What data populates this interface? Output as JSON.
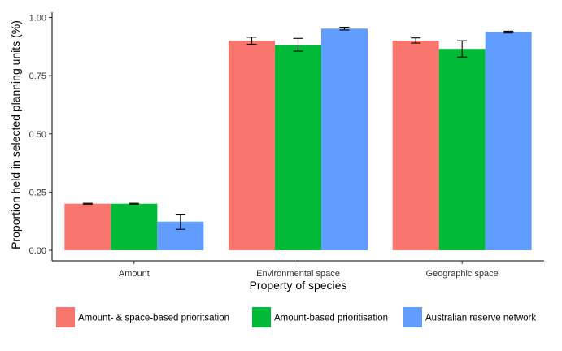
{
  "chart_data": {
    "type": "bar",
    "title": "",
    "xlabel": "Property of species",
    "ylabel": "Proportion held in selected planning units (%)",
    "ylim": [
      0,
      1
    ],
    "yticks": [
      "0.00",
      "0.25",
      "0.50",
      "0.75",
      "1.00"
    ],
    "grid": false,
    "legend_position": "bottom",
    "categories": [
      "Amount",
      "Environmental space",
      "Geographic space"
    ],
    "series": [
      {
        "name": "Amount- & space-based prioritsation",
        "color": "#F8766D",
        "values": [
          0.2,
          0.9,
          0.9
        ],
        "err_low": [
          0.198,
          0.885,
          0.89
        ],
        "err_high": [
          0.202,
          0.915,
          0.912
        ]
      },
      {
        "name": "Amount-based prioritisation",
        "color": "#00BA38",
        "values": [
          0.2,
          0.88,
          0.865
        ],
        "err_low": [
          0.198,
          0.855,
          0.83
        ],
        "err_high": [
          0.202,
          0.91,
          0.9
        ]
      },
      {
        "name": "Australian reserve network",
        "color": "#619CFF",
        "values": [
          0.123,
          0.952,
          0.937
        ],
        "err_low": [
          0.09,
          0.946,
          0.933
        ],
        "err_high": [
          0.155,
          0.958,
          0.941
        ]
      }
    ]
  }
}
